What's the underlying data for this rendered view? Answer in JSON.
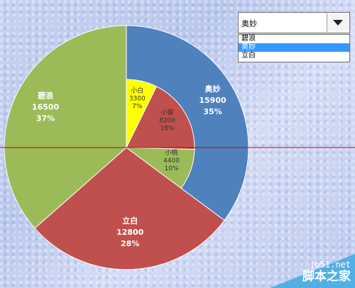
{
  "dropdown": {
    "selected": "奥妙",
    "options": [
      {
        "label": "碧浪",
        "selected": false
      },
      {
        "label": "奥妙",
        "selected": true
      },
      {
        "label": "立白",
        "selected": false
      }
    ]
  },
  "watermark": {
    "site": "jb51.net",
    "name": "脚本之家"
  },
  "chart_data": {
    "type": "pie",
    "title": "",
    "outer": {
      "slices": [
        {
          "label": "奥妙",
          "value": 15900,
          "percent": "35%",
          "color": "#4f81bd"
        },
        {
          "label": "立白",
          "value": 12800,
          "percent": "28%",
          "color": "#c0504d"
        },
        {
          "label": "碧浪",
          "value": 16500,
          "percent": "37%",
          "color": "#9bbb59"
        }
      ]
    },
    "inner": {
      "slices": [
        {
          "label": "小白",
          "value": 3300,
          "percent": "7%",
          "color": "#ffff00"
        },
        {
          "label": "小蓉",
          "value": 8200,
          "percent": "18%",
          "color": "#c0504d"
        },
        {
          "label": "小桃",
          "value": 4400,
          "percent": "10%",
          "color": "#9bbb59"
        }
      ]
    },
    "reference_line_color": "#cc0000"
  }
}
